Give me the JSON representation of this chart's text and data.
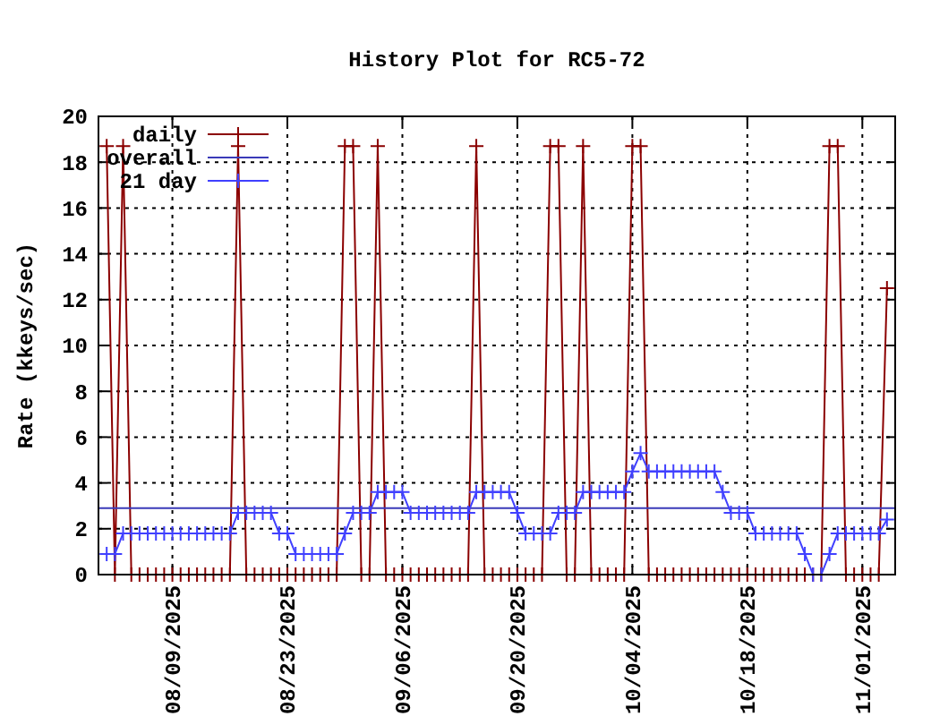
{
  "chart_data": {
    "type": "line",
    "title": "History Plot for RC5-72",
    "ylabel": "Rate (kkeys/sec)",
    "x": [
      "2025-08-01",
      "2025-08-02",
      "2025-08-03",
      "2025-08-04",
      "2025-08-05",
      "2025-08-06",
      "2025-08-07",
      "2025-08-08",
      "2025-08-09",
      "2025-08-10",
      "2025-08-11",
      "2025-08-12",
      "2025-08-13",
      "2025-08-14",
      "2025-08-15",
      "2025-08-16",
      "2025-08-17",
      "2025-08-18",
      "2025-08-19",
      "2025-08-20",
      "2025-08-21",
      "2025-08-22",
      "2025-08-23",
      "2025-08-24",
      "2025-08-25",
      "2025-08-26",
      "2025-08-27",
      "2025-08-28",
      "2025-08-29",
      "2025-08-30",
      "2025-08-31",
      "2025-09-01",
      "2025-09-02",
      "2025-09-03",
      "2025-09-04",
      "2025-09-05",
      "2025-09-06",
      "2025-09-07",
      "2025-09-08",
      "2025-09-09",
      "2025-09-10",
      "2025-09-11",
      "2025-09-12",
      "2025-09-13",
      "2025-09-14",
      "2025-09-15",
      "2025-09-16",
      "2025-09-17",
      "2025-09-18",
      "2025-09-19",
      "2025-09-20",
      "2025-09-21",
      "2025-09-22",
      "2025-09-23",
      "2025-09-24",
      "2025-09-25",
      "2025-09-26",
      "2025-09-27",
      "2025-09-28",
      "2025-09-29",
      "2025-09-30",
      "2025-10-01",
      "2025-10-02",
      "2025-10-03",
      "2025-10-04",
      "2025-10-05",
      "2025-10-06",
      "2025-10-07",
      "2025-10-08",
      "2025-10-09",
      "2025-10-10",
      "2025-10-11",
      "2025-10-12",
      "2025-10-13",
      "2025-10-14",
      "2025-10-15",
      "2025-10-16",
      "2025-10-17",
      "2025-10-18",
      "2025-10-19",
      "2025-10-20",
      "2025-10-21",
      "2025-10-22",
      "2025-10-23",
      "2025-10-24",
      "2025-10-25",
      "2025-10-26",
      "2025-10-27",
      "2025-10-28",
      "2025-10-29",
      "2025-10-30",
      "2025-10-31",
      "2025-11-01",
      "2025-11-02",
      "2025-11-03",
      "2025-11-04"
    ],
    "series": [
      {
        "name": "daily",
        "color": "#8b0000",
        "marker": "cross",
        "values": [
          18.7,
          0,
          18.7,
          0,
          0,
          0,
          0,
          0,
          0,
          0,
          0,
          0,
          0,
          0,
          0,
          0,
          18.7,
          0,
          0,
          0,
          0,
          0,
          0,
          0,
          0,
          0,
          0,
          0,
          0,
          18.7,
          18.7,
          0,
          0,
          18.7,
          0,
          0,
          0,
          0,
          0,
          0,
          0,
          0,
          0,
          0,
          0,
          18.7,
          0,
          0,
          0,
          0,
          0,
          0,
          0,
          0,
          18.7,
          18.7,
          0,
          0,
          18.7,
          0,
          0,
          0,
          0,
          0,
          18.7,
          18.7,
          0,
          0,
          0,
          0,
          0,
          0,
          0,
          0,
          0,
          0,
          0,
          0,
          0,
          0,
          0,
          0,
          0,
          0,
          0,
          0,
          0,
          0,
          18.7,
          18.7,
          0,
          0,
          0,
          0,
          0,
          12.5
        ]
      },
      {
        "name": "overall",
        "color": "#3a3ab8",
        "marker": "none",
        "x": [
          "2025-07-31",
          "2025-11-05"
        ],
        "values": [
          2.9,
          2.9
        ]
      },
      {
        "name": "21 day",
        "color": "#4040ff",
        "marker": "cross",
        "values": [
          0.9,
          0.9,
          1.8,
          1.8,
          1.8,
          1.8,
          1.8,
          1.8,
          1.8,
          1.8,
          1.8,
          1.8,
          1.8,
          1.8,
          1.8,
          1.8,
          2.7,
          2.7,
          2.7,
          2.7,
          2.7,
          1.8,
          1.8,
          0.9,
          0.9,
          0.9,
          0.9,
          0.9,
          0.9,
          1.8,
          2.7,
          2.7,
          2.7,
          3.6,
          3.6,
          3.6,
          3.6,
          2.7,
          2.7,
          2.7,
          2.7,
          2.7,
          2.7,
          2.7,
          2.7,
          3.6,
          3.6,
          3.6,
          3.6,
          3.6,
          2.7,
          1.8,
          1.8,
          1.8,
          1.8,
          2.7,
          2.7,
          2.7,
          3.6,
          3.6,
          3.6,
          3.6,
          3.6,
          3.6,
          4.5,
          5.3,
          4.5,
          4.5,
          4.5,
          4.5,
          4.5,
          4.5,
          4.5,
          4.5,
          4.5,
          3.6,
          2.7,
          2.7,
          2.7,
          1.8,
          1.8,
          1.8,
          1.8,
          1.8,
          1.8,
          0.9,
          0,
          0,
          0.9,
          1.8,
          1.8,
          1.8,
          1.8,
          1.8,
          1.8,
          2.4
        ]
      }
    ],
    "xlim": [
      "2025-07-31",
      "2025-11-05"
    ],
    "xticks": [
      {
        "value": "2025-08-09",
        "label": "08/09/2025"
      },
      {
        "value": "2025-08-23",
        "label": "08/23/2025"
      },
      {
        "value": "2025-09-06",
        "label": "09/06/2025"
      },
      {
        "value": "2025-09-20",
        "label": "09/20/2025"
      },
      {
        "value": "2025-10-04",
        "label": "10/04/2025"
      },
      {
        "value": "2025-10-18",
        "label": "10/18/2025"
      },
      {
        "value": "2025-11-01",
        "label": "11/01/2025"
      }
    ],
    "ylim": [
      0,
      20
    ],
    "yticks": [
      0,
      2,
      4,
      6,
      8,
      10,
      12,
      14,
      16,
      18,
      20
    ],
    "grid": true,
    "legend": "top left",
    "line_style": "solid"
  }
}
